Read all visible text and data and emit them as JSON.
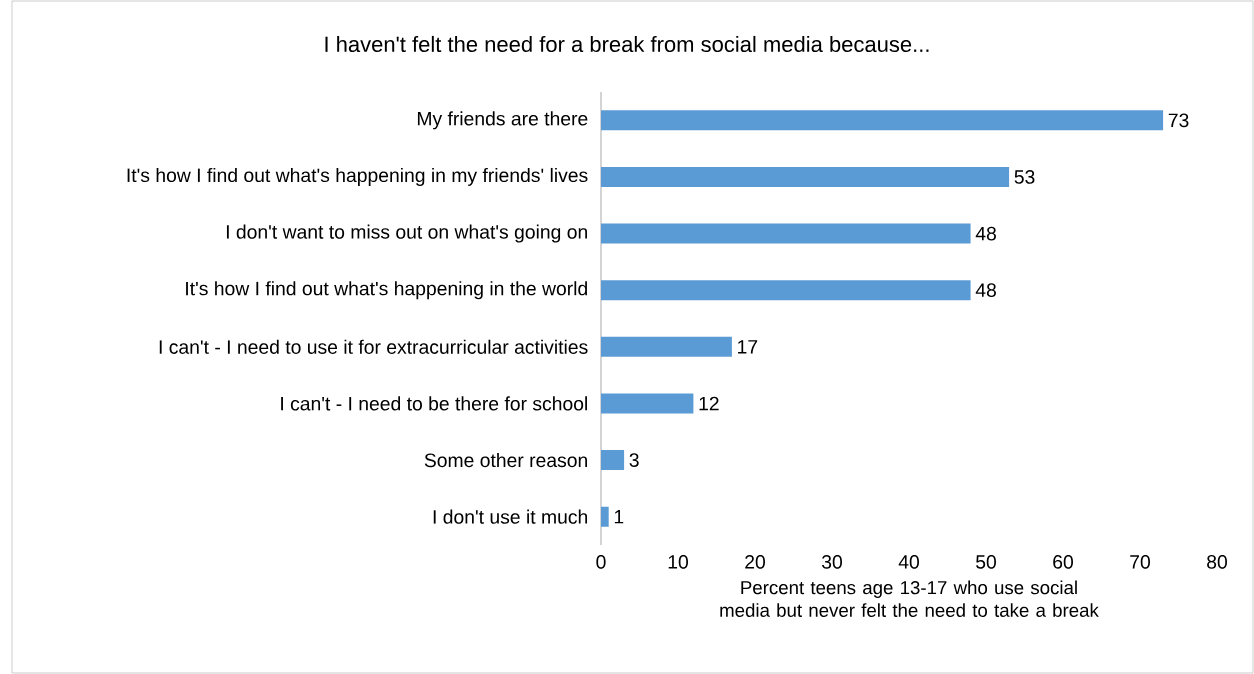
{
  "chart_data": {
    "type": "bar",
    "orientation": "horizontal",
    "title": "I haven't felt the need for a break from social media because...",
    "categories": [
      "My friends are there",
      "It's how I find out what's happening in my friends' lives",
      "I don't want to miss out on what's going on",
      "It's how I find out what's happening in the world",
      "I can't - I need to use it for extracurricular activities",
      "I can't - I need to be there for school",
      "Some other reason",
      "I don't use it much"
    ],
    "values": [
      73,
      53,
      48,
      48,
      17,
      12,
      3,
      1
    ],
    "color": "#5b9bd5",
    "xlim": [
      0,
      80
    ],
    "xticks": [
      0,
      10,
      20,
      30,
      40,
      50,
      60,
      70,
      80
    ],
    "xlabel": "Percent teens age 13-17 who use social media but never felt the need to take a break",
    "data_labels": true
  }
}
